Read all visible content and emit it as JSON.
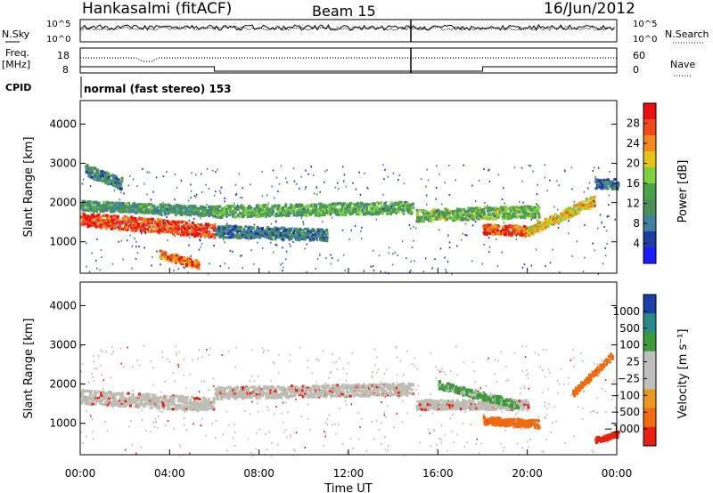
{
  "header": {
    "station": "Hankasalmi (fitACF)",
    "beam": "Beam 15",
    "date": "16/Jun/2012"
  },
  "strips": {
    "nsky_label": "N.Sky",
    "nsearch_label": "N.Search",
    "noise_ticks": [
      "10^5",
      "10^0"
    ],
    "freq_label": "Freq.",
    "freq_unit": "[MHz]",
    "freq_ticks": [
      "18",
      "8"
    ],
    "nave_label": "Nave",
    "nave_ticks": [
      "60",
      "0"
    ],
    "cpid_label": "CPID",
    "cpid_text": "normal (fast stereo) 153"
  },
  "colors": {
    "power": [
      "#1b1bff",
      "#1f3d9e",
      "#3f7f9f",
      "#4a8f5a",
      "#4aa34a",
      "#7fcf3f",
      "#e6c417",
      "#f08a1e",
      "#f04a1a",
      "#e81010"
    ],
    "velocity": [
      "#1a3fa6",
      "#2a8a8a",
      "#3a9a3a",
      "#bfbfbf",
      "#bfbfbf",
      "#e89a20",
      "#f06a10",
      "#e82010"
    ],
    "ground_scatter": "#bdbdb5"
  },
  "chart_data": [
    {
      "type": "heatmap",
      "quantity": "Power",
      "ylabel": "Slant Range [km]",
      "xlabel": "Time UT",
      "x_ticks": [
        "00:00",
        "04:00",
        "08:00",
        "12:00",
        "16:00",
        "20:00",
        "00:00"
      ],
      "y_ticks": [
        1000,
        2000,
        3000,
        4000
      ],
      "ylim": [
        200,
        4600
      ],
      "xlim_hours": [
        0,
        24
      ],
      "colorbar": {
        "label": "Power [dB]",
        "ticks": [
          "4",
          "8",
          "12",
          "16",
          "20",
          "24",
          "28"
        ],
        "range": [
          0,
          30
        ]
      },
      "bands": [
        {
          "t": [
            0.0,
            6.0
          ],
          "r": [
            1600,
            1300
          ],
          "w": 350,
          "level": 26
        },
        {
          "t": [
            0.0,
            6.0
          ],
          "r": [
            1950,
            1800
          ],
          "w": 250,
          "level": 11
        },
        {
          "t": [
            0.2,
            1.8
          ],
          "r": [
            2850,
            2500
          ],
          "w": 300,
          "level": 9
        },
        {
          "t": [
            6.0,
            14.8
          ],
          "r": [
            1800,
            1900
          ],
          "w": 300,
          "level": 13
        },
        {
          "t": [
            6.0,
            11.0
          ],
          "r": [
            1300,
            1200
          ],
          "w": 300,
          "level": 8
        },
        {
          "t": [
            15.0,
            20.5
          ],
          "r": [
            1700,
            1800
          ],
          "w": 300,
          "level": 14
        },
        {
          "t": [
            18.0,
            20.0
          ],
          "r": [
            1350,
            1300
          ],
          "w": 250,
          "level": 25
        },
        {
          "t": [
            20.0,
            23.0
          ],
          "r": [
            1300,
            2100
          ],
          "w": 250,
          "level": 20
        },
        {
          "t": [
            23.0,
            24.0
          ],
          "r": [
            2500,
            2500
          ],
          "w": 250,
          "level": 7
        },
        {
          "t": [
            3.5,
            5.2
          ],
          "r": [
            700,
            450
          ],
          "w": 200,
          "level": 24
        }
      ]
    },
    {
      "type": "heatmap",
      "quantity": "Velocity",
      "ylabel": "Slant Range [km]",
      "xlabel": "Time UT",
      "x_ticks": [
        "00:00",
        "04:00",
        "08:00",
        "12:00",
        "16:00",
        "20:00",
        "00:00"
      ],
      "y_ticks": [
        1000,
        2000,
        3000,
        4000
      ],
      "ylim": [
        200,
        4600
      ],
      "xlim_hours": [
        0,
        24
      ],
      "colorbar": {
        "label": "Velocity [m s⁻¹]",
        "ticks": [
          "1000",
          "500",
          "100",
          "25",
          "−25",
          "−100",
          "−500",
          "−1000"
        ],
        "range": [
          -1000,
          1000
        ]
      },
      "bands": [
        {
          "t": [
            0.0,
            6.0
          ],
          "r": [
            1700,
            1500
          ],
          "w": 350,
          "vel": 0
        },
        {
          "t": [
            6.0,
            14.8
          ],
          "r": [
            1800,
            1900
          ],
          "w": 300,
          "vel": 0
        },
        {
          "t": [
            15.0,
            20.0
          ],
          "r": [
            1500,
            1500
          ],
          "w": 250,
          "vel": 0
        },
        {
          "t": [
            16.0,
            19.5
          ],
          "r": [
            2000,
            1500
          ],
          "w": 200,
          "vel": 150
        },
        {
          "t": [
            18.0,
            20.5
          ],
          "r": [
            1100,
            1000
          ],
          "w": 200,
          "vel": -300
        },
        {
          "t": [
            22.0,
            23.8
          ],
          "r": [
            1800,
            2800
          ],
          "w": 150,
          "vel": -200
        },
        {
          "t": [
            23.0,
            24.0
          ],
          "r": [
            600,
            750
          ],
          "w": 150,
          "vel": -700
        }
      ]
    }
  ]
}
